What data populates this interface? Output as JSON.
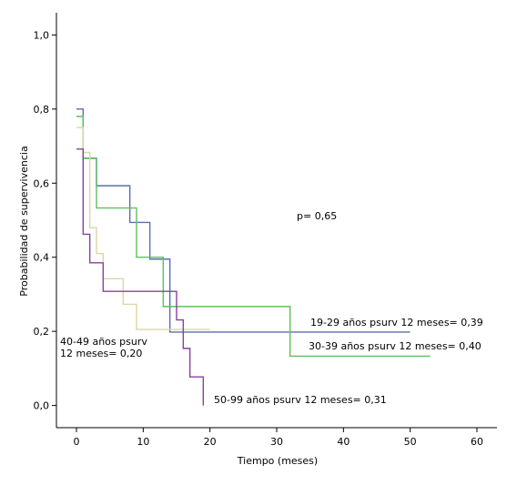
{
  "chart_data": {
    "type": "line",
    "title": "",
    "xlabel": "Tiempo (meses)",
    "ylabel": "Probabilidad de supervivencia",
    "xlim": [
      -3,
      63
    ],
    "ylim": [
      -0.06,
      1.06
    ],
    "x_ticks": [
      0,
      10,
      20,
      30,
      40,
      50,
      60
    ],
    "x_tick_labels": [
      "0",
      "10",
      "20",
      "30",
      "40",
      "50",
      "60"
    ],
    "y_ticks": [
      0,
      0.2,
      0.4,
      0.6,
      0.8,
      1.0
    ],
    "y_tick_labels": [
      "0,0",
      "0,2",
      "0,4",
      "0,6",
      "0,8",
      "1,0"
    ],
    "grid": false,
    "series": [
      {
        "color": "#5a6fae",
        "step_points": [
          [
            0,
            0.8
          ],
          [
            1,
            0.667
          ],
          [
            3,
            0.593
          ],
          [
            8,
            0.494
          ],
          [
            11,
            0.395
          ],
          [
            14,
            0.198
          ],
          [
            50,
            0.198
          ]
        ]
      },
      {
        "color": "#5cc05c",
        "step_points": [
          [
            0,
            0.78
          ],
          [
            1,
            0.667
          ],
          [
            3,
            0.533
          ],
          [
            9,
            0.4
          ],
          [
            13,
            0.267
          ],
          [
            32,
            0.133
          ],
          [
            53,
            0.133
          ]
        ]
      },
      {
        "color": "#dcd6a6",
        "step_points": [
          [
            0,
            0.75
          ],
          [
            1,
            0.683
          ],
          [
            2,
            0.48
          ],
          [
            3,
            0.41
          ],
          [
            4,
            0.342
          ],
          [
            7,
            0.273
          ],
          [
            9,
            0.205
          ],
          [
            20,
            0.205
          ]
        ]
      },
      {
        "color": "#8a3fa0",
        "step_points": [
          [
            0,
            0.692
          ],
          [
            1,
            0.462
          ],
          [
            2,
            0.385
          ],
          [
            4,
            0.308
          ],
          [
            15,
            0.231
          ],
          [
            16,
            0.154
          ],
          [
            17,
            0.077
          ],
          [
            19,
            0.0
          ]
        ]
      }
    ],
    "annotations": {
      "p_value": "p= 0,65",
      "group_19_29": "19-29 años psurv 12 meses= 0,39",
      "group_30_39": "30-39 años psurv 12 meses= 0,40",
      "group_40_49_line1": "40-49 años psurv",
      "group_40_49_line2": "12 meses= 0,20",
      "group_50_99": "50-99 años psurv 12 meses= 0,31"
    }
  }
}
